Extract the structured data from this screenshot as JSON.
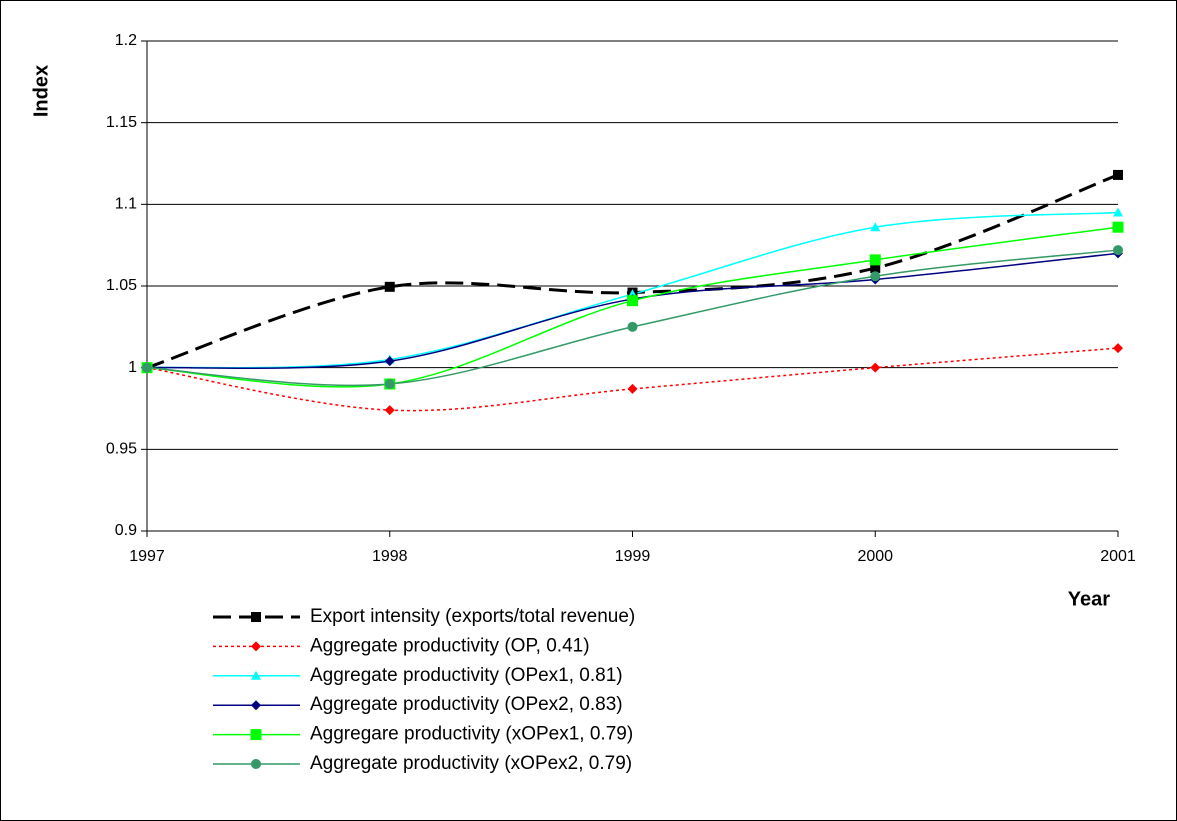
{
  "chart_data": {
    "type": "line",
    "y_label": "Index",
    "x_label": "Year",
    "x": [
      1997,
      1998,
      1999,
      2000,
      2001
    ],
    "xlim": [
      1997,
      2001
    ],
    "xticks": [
      1997,
      1998,
      1999,
      2000,
      2001
    ],
    "ylim": [
      0.9,
      1.2
    ],
    "yticks": [
      0.9,
      0.95,
      1,
      1.05,
      1.1,
      1.15,
      1.2
    ],
    "grid": true,
    "smooth": true,
    "legend": "bottom",
    "series": [
      {
        "name": "Export intensity (exports/total revenue)",
        "color": "#000000",
        "line_style": "dashed",
        "marker": "square",
        "values": [
          1.0,
          1.0495,
          1.046,
          1.061,
          1.118
        ]
      },
      {
        "name": "Aggregate productivity (OP, 0.41)",
        "color": "#ff0000",
        "line_style": "dotted",
        "marker": "diamond",
        "values": [
          1.0,
          0.974,
          0.987,
          1.0,
          1.012
        ]
      },
      {
        "name": "Aggregate productivity (OPex1, 0.81)",
        "color": "#00ffff",
        "line_style": "solid",
        "marker": "triangle",
        "values": [
          1.0,
          1.005,
          1.045,
          1.086,
          1.095
        ]
      },
      {
        "name": "Aggregate productivity (OPex2, 0.83)",
        "color": "#000080",
        "line_style": "solid",
        "marker": "diamond",
        "values": [
          1.0,
          1.004,
          1.042,
          1.054,
          1.07
        ]
      },
      {
        "name": "Aggregare productivity (xOPex1, 0.79)",
        "color": "#00ff00",
        "line_style": "solid",
        "marker": "square",
        "values": [
          1.0,
          0.99,
          1.041,
          1.066,
          1.086
        ]
      },
      {
        "name": "Aggregate productivity (xOPex2, 0.79)",
        "color": "#339966",
        "line_style": "solid",
        "marker": "circle",
        "values": [
          1.0,
          0.99,
          1.025,
          1.056,
          1.072
        ]
      }
    ]
  }
}
